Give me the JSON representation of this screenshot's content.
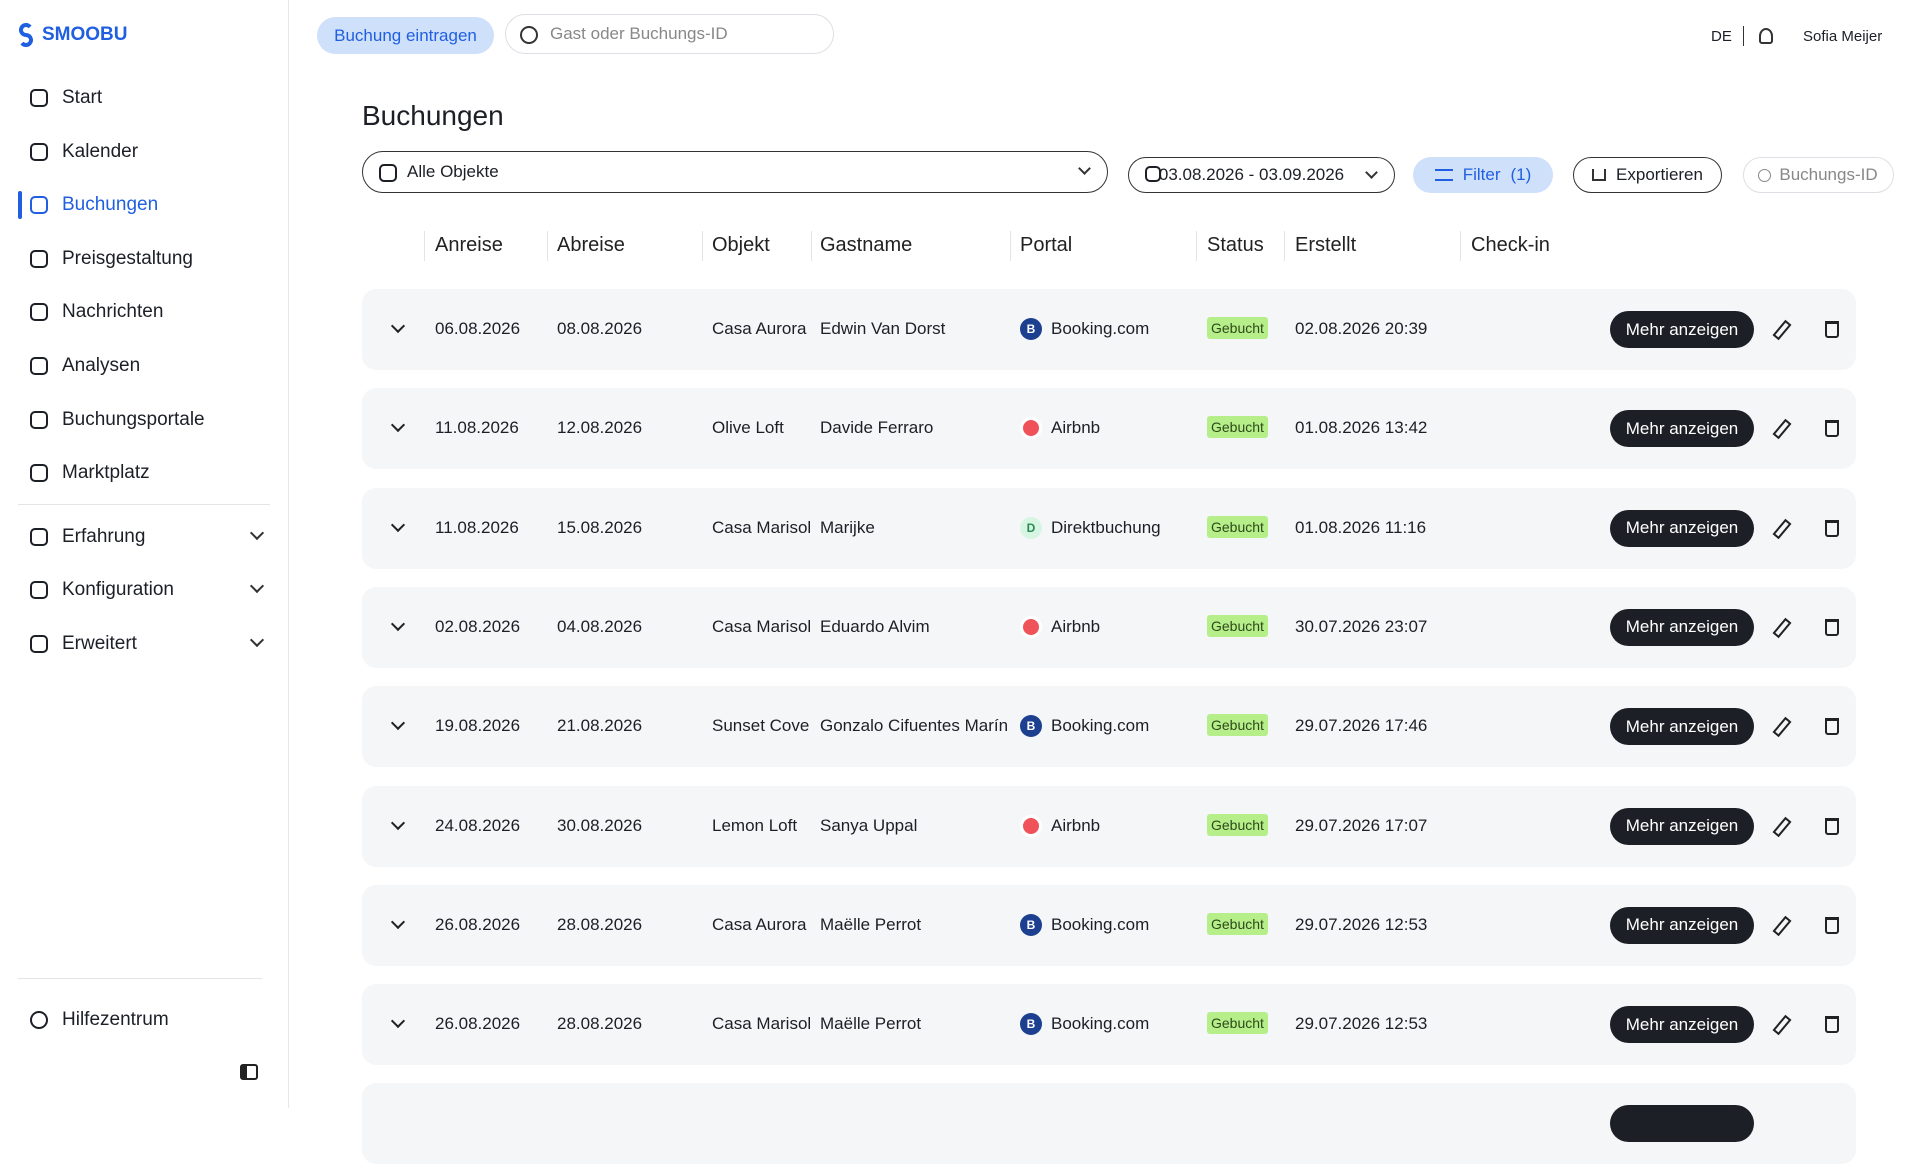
{
  "sidebar": {
    "brand": "SMOOBU",
    "nav": [
      "Start",
      "Kalender",
      "Buchungen",
      "Preisgestaltung",
      "Nachrichten",
      "Analysen",
      "Buchungsportale",
      "Marktplatz"
    ],
    "active": 2,
    "groups": [
      "Erfahrung",
      "Konfiguration",
      "Erweitert"
    ],
    "help": "Hilfezentrum"
  },
  "topbar": {
    "new_booking": "Buchung eintragen",
    "search_placeholder": "Gast oder Buchungs-ID",
    "language": "DE",
    "user": "Sofia Meijer"
  },
  "page": {
    "title": "Buchungen",
    "property_select": "Alle Objekte",
    "date_range": "03.08.2026 - 03.09.2026",
    "filter": "Filter",
    "filter_count": "(1)",
    "export": "Exportieren",
    "id_search": "Buchungs-ID"
  },
  "table": {
    "columns": [
      "Anreise",
      "Abreise",
      "Objekt",
      "Gastname",
      "Portal",
      "Status",
      "Erstellt",
      "Check-in"
    ],
    "action": "Mehr anzeigen",
    "rows": [
      {
        "arrival": "06.08.2026",
        "departure": "08.08.2026",
        "property": "Casa Aurora",
        "guest": "Edwin Van Dorst",
        "portal": "Booking.com",
        "icon": "B",
        "icon_color": "#1d3f8f",
        "status": "Gebucht",
        "created": "02.08.2026 20:39"
      },
      {
        "arrival": "11.08.2026",
        "departure": "12.08.2026",
        "property": "Olive Loft",
        "guest": "Davide Ferraro",
        "portal": "Airbnb",
        "icon_color": "#f0525a",
        "status": "Gebucht",
        "created": "01.08.2026 13:42"
      },
      {
        "arrival": "11.08.2026",
        "departure": "15.08.2026",
        "property": "Casa Marisol",
        "guest": "Marijke",
        "portal": "Direktbuchung",
        "icon": "D",
        "icon_color": "#d7f5e3",
        "status": "Gebucht",
        "created": "01.08.2026 11:16"
      },
      {
        "arrival": "02.08.2026",
        "departure": "04.08.2026",
        "property": "Casa Marisol",
        "guest": "Eduardo Alvim",
        "portal": "Airbnb",
        "icon_color": "#f0525a",
        "status": "Gebucht",
        "created": "30.07.2026 23:07"
      },
      {
        "arrival": "19.08.2026",
        "departure": "21.08.2026",
        "property": "Sunset Cove",
        "guest": "Gonzalo Cifuentes Marín",
        "portal": "Booking.com",
        "icon": "B",
        "icon_color": "#1d3f8f",
        "status": "Gebucht",
        "created": "29.07.2026 17:46"
      },
      {
        "arrival": "24.08.2026",
        "departure": "30.08.2026",
        "property": "Lemon Loft",
        "guest": "Sanya Uppal",
        "portal": "Airbnb",
        "icon_color": "#f0525a",
        "status": "Gebucht",
        "created": "29.07.2026 17:07"
      },
      {
        "arrival": "26.08.2026",
        "departure": "28.08.2026",
        "property": "Casa Aurora",
        "guest": "Maëlle Perrot",
        "portal": "Booking.com",
        "icon": "B",
        "icon_color": "#1d3f8f",
        "status": "Gebucht",
        "created": "29.07.2026 12:53"
      },
      {
        "arrival": "26.08.2026",
        "departure": "28.08.2026",
        "property": "Casa Marisol",
        "guest": "Maëlle Perrot",
        "portal": "Booking.com",
        "icon": "B",
        "icon_color": "#1d3f8f",
        "status": "Gebucht",
        "created": "29.07.2026 12:53"
      }
    ]
  }
}
